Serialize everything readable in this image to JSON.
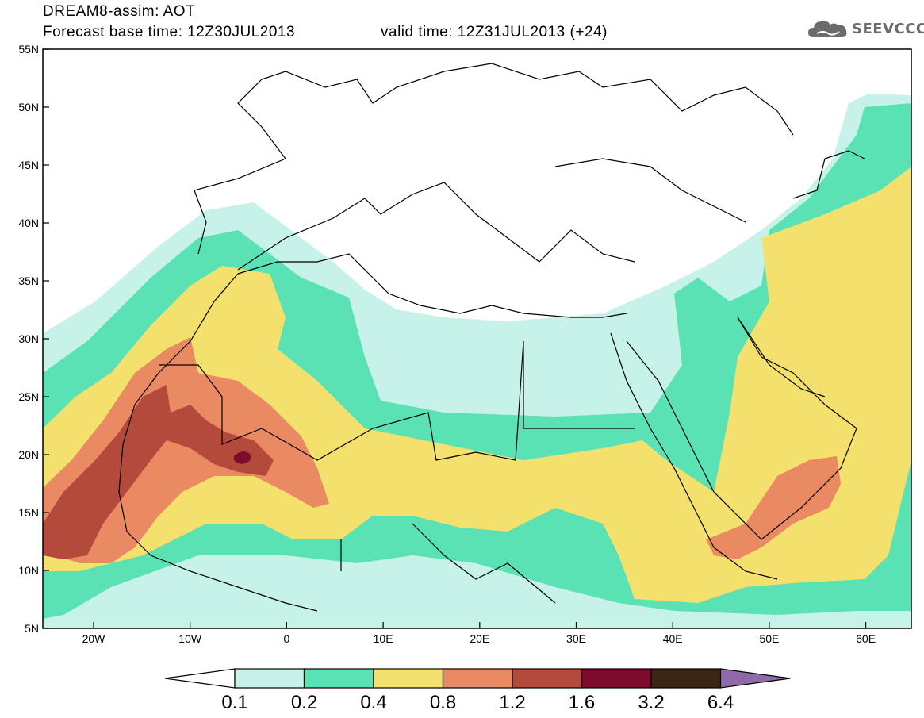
{
  "header": {
    "title_line1": "DREAM8-assim: AOT",
    "title_line2": "Forecast base time: 12Z30JUL2013",
    "valid_time": "valid time: 12Z31JUL2013 (+24)",
    "logo_text": "SEEVCCC",
    "logo_icon": "cloud-icon"
  },
  "map": {
    "lat_labels": [
      "55N",
      "50N",
      "45N",
      "40N",
      "35N",
      "30N",
      "25N",
      "20N",
      "15N",
      "10N",
      "5N"
    ],
    "lon_labels": [
      "20W",
      "10W",
      "0",
      "10E",
      "20E",
      "30E",
      "40E",
      "50E",
      "60E"
    ]
  },
  "colorbar": {
    "labels": [
      "0.1",
      "0.2",
      "0.4",
      "0.8",
      "1.2",
      "1.6",
      "3.2",
      "6.4"
    ],
    "colors": [
      "#c6f2ea",
      "#5ae2b4",
      "#f3e06d",
      "#ea8a63",
      "#b44a3c",
      "#7e0a2e",
      "#3b2616",
      "#8f6aa8"
    ]
  },
  "palette": {
    "c01": "#c6f2ea",
    "c02": "#5ae2b4",
    "c04": "#f3e06d",
    "c08": "#ea8a63",
    "c12": "#b44a3c",
    "c16": "#7e0a2e"
  }
}
